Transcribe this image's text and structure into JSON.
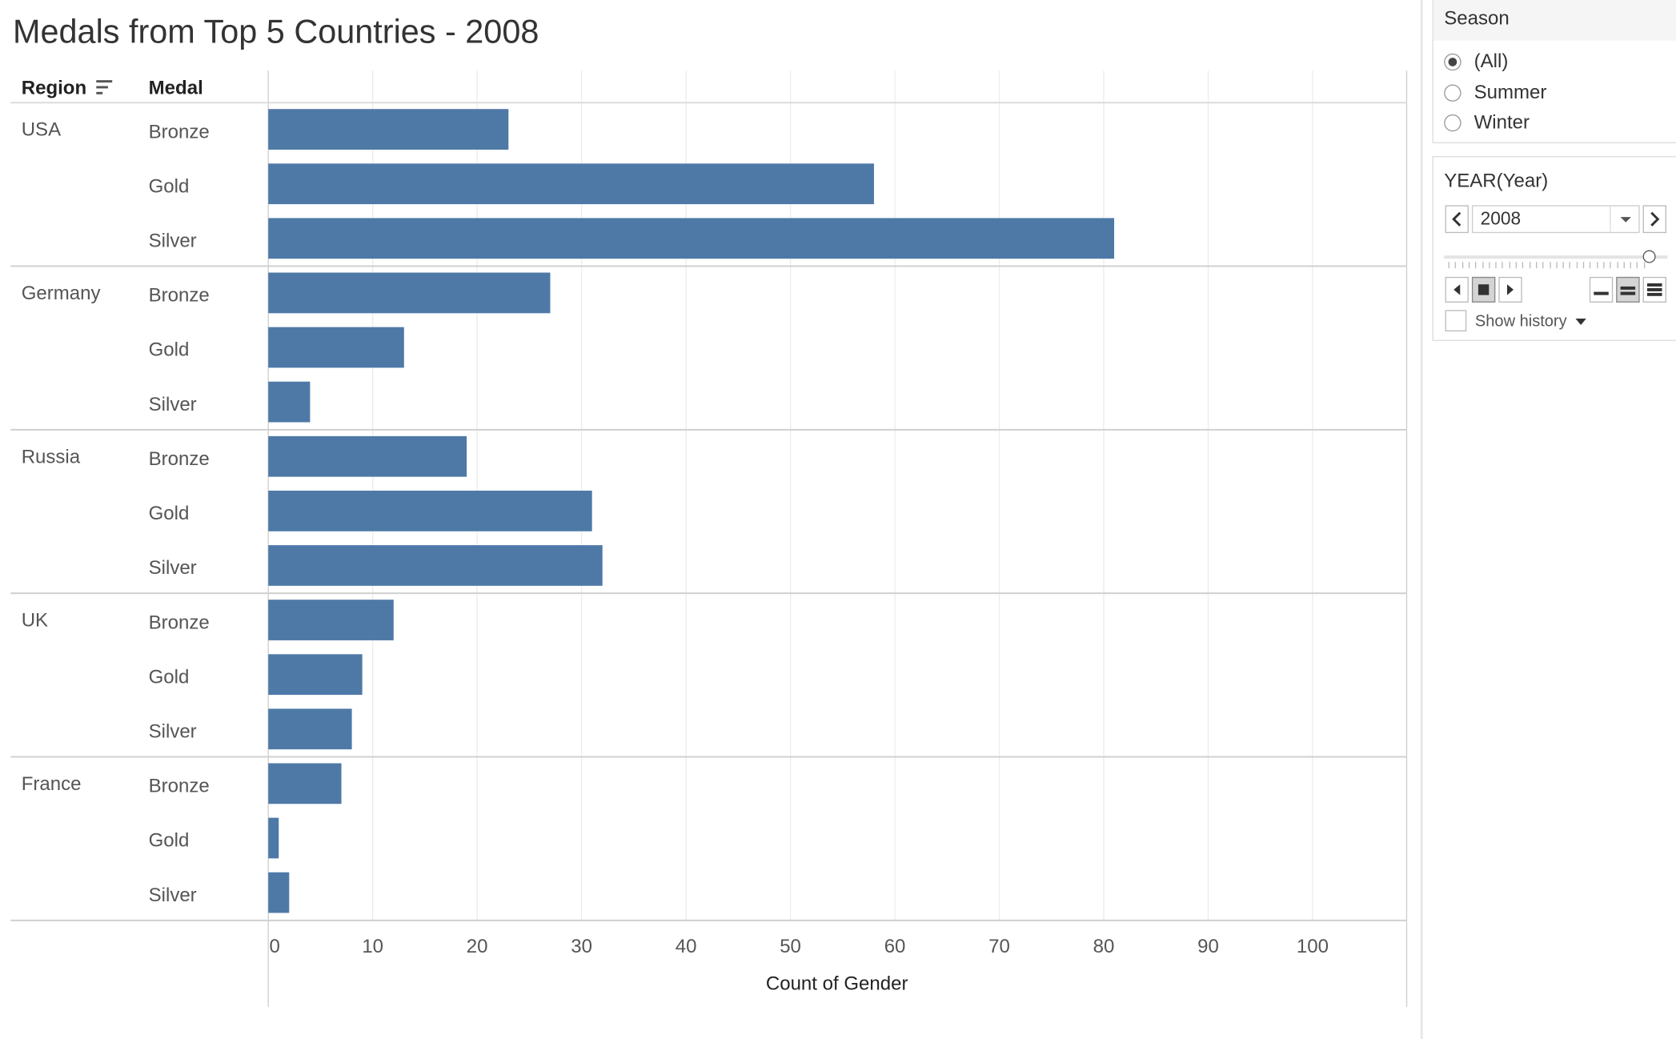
{
  "title": "Medals from Top 5 Countries - 2008",
  "headers": {
    "region": "Region",
    "medal": "Medal"
  },
  "chart_data": {
    "type": "bar",
    "orientation": "horizontal",
    "title": "Medals from Top 5 Countries - 2008",
    "xlabel": "Count of Gender",
    "ylabel": "",
    "xlim": [
      0,
      109
    ],
    "xticks": [
      "0",
      "10",
      "20",
      "30",
      "40",
      "50",
      "60",
      "70",
      "80",
      "90",
      "100"
    ],
    "grid": true,
    "bar_color": "#4e79a7",
    "groups": [
      {
        "region": "USA",
        "medals": [
          {
            "medal": "Bronze",
            "value": 23
          },
          {
            "medal": "Gold",
            "value": 58
          },
          {
            "medal": "Silver",
            "value": 81
          }
        ]
      },
      {
        "region": "Germany",
        "medals": [
          {
            "medal": "Bronze",
            "value": 27
          },
          {
            "medal": "Gold",
            "value": 13
          },
          {
            "medal": "Silver",
            "value": 4
          }
        ]
      },
      {
        "region": "Russia",
        "medals": [
          {
            "medal": "Bronze",
            "value": 19
          },
          {
            "medal": "Gold",
            "value": 31
          },
          {
            "medal": "Silver",
            "value": 32
          }
        ]
      },
      {
        "region": "UK",
        "medals": [
          {
            "medal": "Bronze",
            "value": 12
          },
          {
            "medal": "Gold",
            "value": 9
          },
          {
            "medal": "Silver",
            "value": 8
          }
        ]
      },
      {
        "region": "France",
        "medals": [
          {
            "medal": "Bronze",
            "value": 7
          },
          {
            "medal": "Gold",
            "value": 1
          },
          {
            "medal": "Silver",
            "value": 2
          }
        ]
      }
    ]
  },
  "season_filter": {
    "title": "Season",
    "options": [
      "(All)",
      "Summer",
      "Winter"
    ],
    "selected": "(All)"
  },
  "year_filter": {
    "title": "YEAR(Year)",
    "value": "2008",
    "show_history_label": "Show history",
    "slider_level": 1.0
  },
  "icons": {
    "sort": "sort-descending-icon",
    "prev": "chevron-left-icon",
    "next": "chevron-right-icon",
    "dropdown": "caret-down-icon"
  }
}
